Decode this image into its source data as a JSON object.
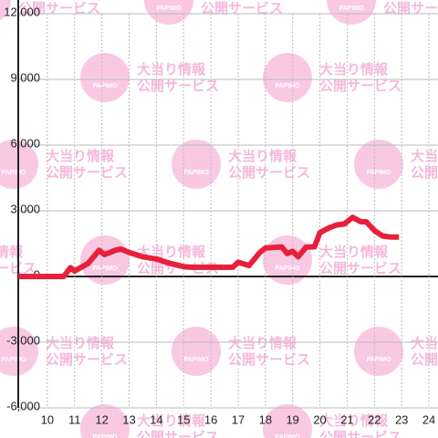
{
  "chart_data": {
    "type": "line",
    "x": [
      8.933,
      10.6,
      10.85,
      11.0,
      11.5,
      11.9,
      12.1,
      12.5,
      12.7,
      13.0,
      13.5,
      14.0,
      14.5,
      15.0,
      15.3,
      16.8,
      17.0,
      17.4,
      17.8,
      18.0,
      18.6,
      18.8,
      19.0,
      19.2,
      19.5,
      19.8,
      20.0,
      20.3,
      20.6,
      20.9,
      21.2,
      21.5,
      21.7,
      22.0,
      22.3,
      22.6,
      22.9
    ],
    "series": [
      {
        "color": "#e8203c",
        "values": [
          0,
          0,
          400,
          250,
          600,
          1200,
          1000,
          1200,
          1250,
          1100,
          900,
          800,
          600,
          450,
          420,
          420,
          650,
          500,
          1100,
          1300,
          1350,
          1050,
          1150,
          900,
          1350,
          1350,
          2000,
          2200,
          2350,
          2400,
          2700,
          2500,
          2500,
          2100,
          1850,
          1800,
          1800
        ]
      }
    ],
    "xlim": [
      8.933,
      24.333
    ],
    "xticks": [
      10,
      11,
      12,
      13,
      14,
      15,
      16,
      17,
      18,
      19,
      20,
      21,
      22,
      23,
      24
    ],
    "ylim": [
      -6000,
      12000
    ],
    "yticks": [
      {
        "value": -6000,
        "label": "-6,000"
      },
      {
        "value": -3000,
        "label": "-3,000"
      },
      0,
      {
        "value": 3000,
        "label": "3,000"
      },
      {
        "value": 6000,
        "label": "6,000"
      },
      {
        "value": 9000,
        "label": "9,000"
      },
      {
        "value": 12000,
        "label": "12,000"
      }
    ],
    "grid": true
  },
  "watermark": {
    "logo": "PAPIMO",
    "line1": "大当り情報",
    "line2": "公開サービス"
  }
}
